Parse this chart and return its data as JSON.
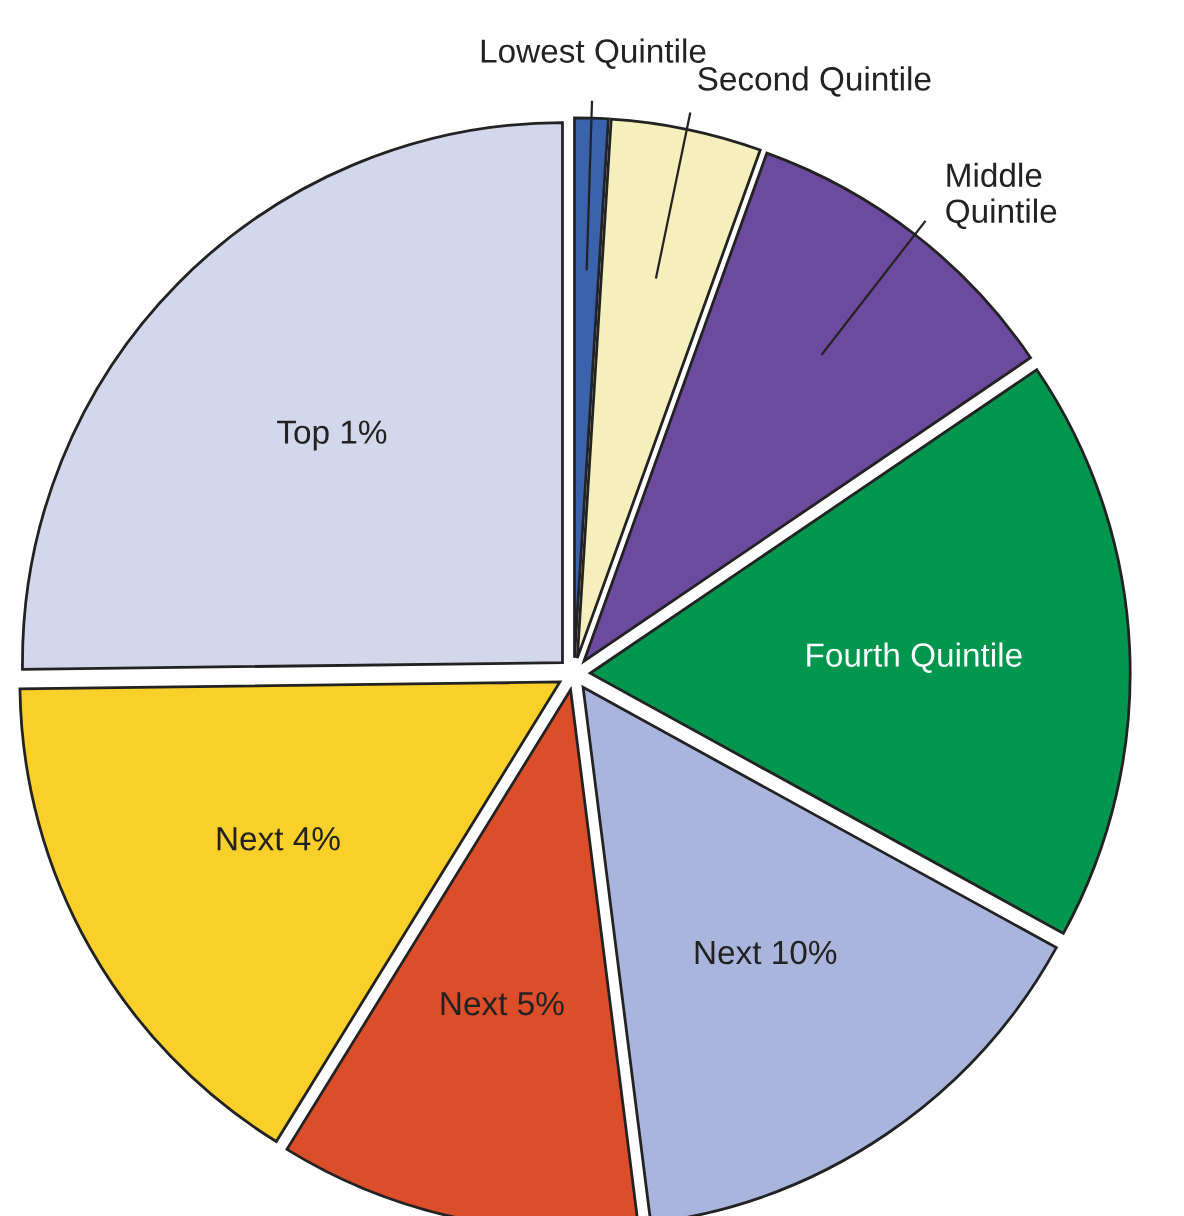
{
  "chart_data": {
    "type": "pie",
    "categories": [
      "Lowest Quintile",
      "Second Quintile",
      "Middle\nQuintile",
      "Fourth Quintile",
      "Next 10%",
      "Next 5%",
      "Next 4%",
      "Top 1%"
    ],
    "values": [
      1,
      4.5,
      10,
      17.5,
      15,
      10.8,
      16,
      25.2
    ],
    "colors": [
      "#3a62ad",
      "#f5efbb",
      "#6c4a9e",
      "#00964e",
      "#a9b5dc",
      "#dc4e2a",
      "#f9cf2a",
      "#d3d7ec"
    ],
    "legend": false
  }
}
